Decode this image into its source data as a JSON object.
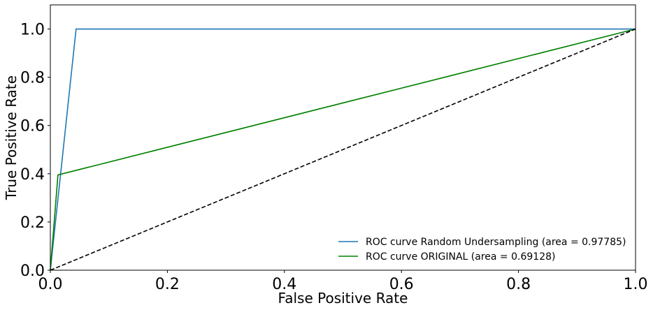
{
  "chart_data": {
    "type": "line",
    "xlabel": "False Positive Rate",
    "ylabel": "True Positive Rate",
    "xlim": [
      0.0,
      1.0
    ],
    "ylim": [
      0.0,
      1.1
    ],
    "xticks": [
      "0.0",
      "0.2",
      "0.4",
      "0.6",
      "0.8",
      "1.0"
    ],
    "yticks": [
      "0.0",
      "0.2",
      "0.4",
      "0.6",
      "0.8",
      "1.0"
    ],
    "grid": false,
    "legend_position": "lower-right",
    "series": [
      {
        "name": "ROC curve Random Undersampling (area = 0.97785)",
        "color": "#1f77b4",
        "dash": "solid",
        "points": [
          [
            0.0,
            0.0
          ],
          [
            0.044,
            1.0
          ],
          [
            1.0,
            1.0
          ]
        ]
      },
      {
        "name": "ROC curve ORIGINAL (area = 0.69128)",
        "color": "#008000",
        "dash": "solid",
        "points": [
          [
            0.0,
            0.0
          ],
          [
            0.013,
            0.395
          ],
          [
            1.0,
            1.0
          ]
        ]
      },
      {
        "color": "#000000",
        "dash": "dashed",
        "points": [
          [
            0.0,
            0.0
          ],
          [
            1.0,
            1.0
          ]
        ]
      }
    ]
  }
}
